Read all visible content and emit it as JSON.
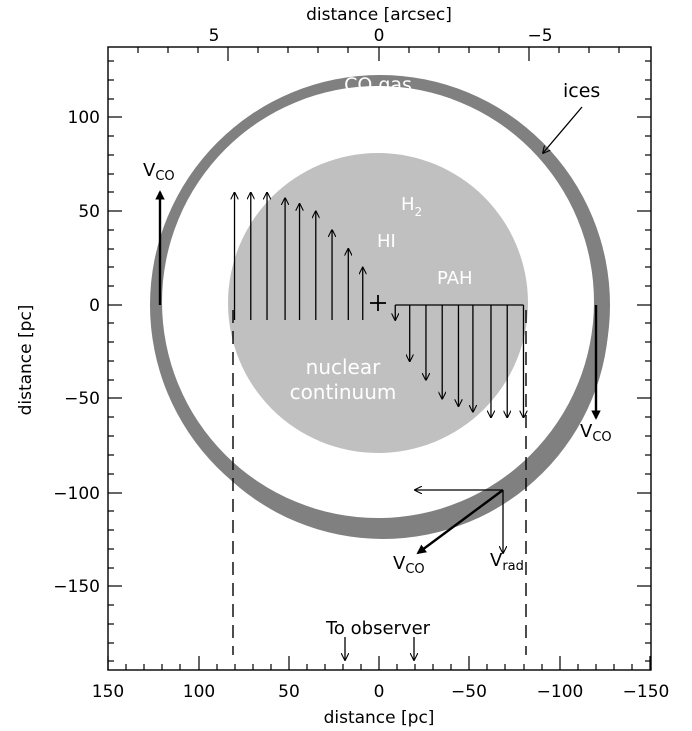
{
  "axes": {
    "bottom": {
      "label": "distance [pc]",
      "ticks": [
        "150",
        "100",
        "50",
        "0",
        "−50",
        "−100",
        "−150"
      ]
    },
    "left": {
      "label": "distance [pc]",
      "ticks": [
        "100",
        "50",
        "0",
        "−50",
        "−100",
        "−150"
      ]
    },
    "top": {
      "label": "distance [arcsec]",
      "ticks": [
        "5",
        "0",
        "−5"
      ]
    }
  },
  "labels": {
    "co_gas": "CO gas",
    "ices": "ices",
    "h2": "H",
    "h2_sub": "2",
    "hi": "HI",
    "pah": "PAH",
    "nuclear": "nuclear",
    "continuum": "continuum",
    "vco": "V",
    "vco_sub": "CO",
    "vrad": "V",
    "vrad_sub": "rad",
    "observer": "To observer"
  },
  "colors": {
    "ring": "#808080",
    "disk": "#c0c0c0",
    "background": "#ffffff",
    "ink": "#000000"
  },
  "rotation_curve": {
    "x_pc": [
      80,
      71,
      62,
      52,
      44,
      35,
      26,
      17,
      9,
      -9,
      -17,
      -26,
      -35,
      -44,
      -52,
      -62,
      -71,
      -80
    ],
    "v_top_pc": [
      60,
      60,
      60,
      57,
      54,
      50,
      40,
      30,
      20,
      -8,
      -30,
      -40,
      -50,
      -54,
      -57,
      -60,
      -60,
      -60
    ]
  }
}
